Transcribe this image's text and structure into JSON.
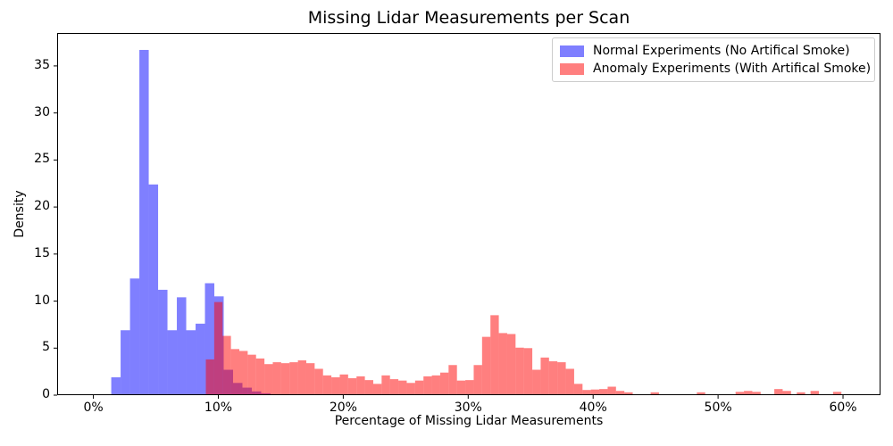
{
  "chart_data": {
    "type": "histogram",
    "title": "Missing Lidar Measurements per Scan",
    "xlabel": "Percentage of Missing Lidar Measurements",
    "ylabel": "Density",
    "xlim": [
      -2.9,
      63.0
    ],
    "ylim": [
      0,
      38.5
    ],
    "grid": false,
    "x_tick_values": [
      0,
      10,
      20,
      30,
      40,
      50,
      60
    ],
    "x_tick_labels": [
      "0%",
      "10%",
      "20%",
      "30%",
      "40%",
      "50%",
      "60%"
    ],
    "y_tick_values": [
      0,
      5,
      10,
      15,
      20,
      25,
      30,
      35
    ],
    "y_tick_labels": [
      "0",
      "5",
      "10",
      "15",
      "20",
      "25",
      "30",
      "35"
    ],
    "legend": {
      "position": "upper right",
      "entries": [
        {
          "label": "Normal Experiments (No Artifical Smoke)",
          "color": "rgba(0,0,255,0.5)"
        },
        {
          "label": "Anomaly Experiments (With Artifical Smoke)",
          "color": "rgba(255,0,0,0.5)"
        }
      ]
    },
    "series": [
      {
        "name": "Normal Experiments (No Artifical Smoke)",
        "color": "rgba(0,0,255,0.5)",
        "bin_width": 0.75,
        "bins": [
          [
            1.43,
            1.9
          ],
          [
            2.18,
            6.9
          ],
          [
            2.93,
            12.4
          ],
          [
            3.68,
            36.7
          ],
          [
            4.43,
            22.4
          ],
          [
            5.18,
            11.2
          ],
          [
            5.93,
            6.9
          ],
          [
            6.68,
            10.4
          ],
          [
            7.43,
            6.9
          ],
          [
            8.18,
            7.6
          ],
          [
            8.93,
            11.9
          ],
          [
            9.68,
            10.5
          ],
          [
            10.43,
            2.7
          ],
          [
            11.18,
            1.3
          ],
          [
            11.93,
            0.8
          ],
          [
            12.68,
            0.4
          ],
          [
            13.43,
            0.2
          ]
        ]
      },
      {
        "name": "Anomaly Experiments (With Artifical Smoke)",
        "color": "rgba(255,0,0,0.5)",
        "bin_width": 0.67,
        "bins": [
          [
            9.0,
            3.8
          ],
          [
            9.67,
            9.9
          ],
          [
            10.34,
            6.3
          ],
          [
            11.01,
            4.9
          ],
          [
            11.68,
            4.7
          ],
          [
            12.35,
            4.3
          ],
          [
            13.02,
            3.9
          ],
          [
            13.69,
            3.3
          ],
          [
            14.36,
            3.5
          ],
          [
            15.03,
            3.4
          ],
          [
            15.7,
            3.5
          ],
          [
            16.37,
            3.7
          ],
          [
            17.04,
            3.4
          ],
          [
            17.71,
            2.8
          ],
          [
            18.38,
            2.1
          ],
          [
            19.05,
            1.9
          ],
          [
            19.72,
            2.2
          ],
          [
            20.39,
            1.8
          ],
          [
            21.06,
            2.0
          ],
          [
            21.73,
            1.6
          ],
          [
            22.4,
            1.2
          ],
          [
            23.07,
            2.1
          ],
          [
            23.74,
            1.7
          ],
          [
            24.41,
            1.55
          ],
          [
            25.08,
            1.3
          ],
          [
            25.75,
            1.55
          ],
          [
            26.42,
            2.0
          ],
          [
            27.09,
            2.1
          ],
          [
            27.76,
            2.4
          ],
          [
            28.43,
            3.2
          ],
          [
            29.1,
            1.55
          ],
          [
            29.77,
            1.6
          ],
          [
            30.44,
            3.2
          ],
          [
            31.11,
            6.2
          ],
          [
            31.78,
            8.5
          ],
          [
            32.45,
            6.6
          ],
          [
            33.12,
            6.5
          ],
          [
            33.79,
            5.05
          ],
          [
            34.46,
            5.0
          ],
          [
            35.13,
            2.7
          ],
          [
            35.8,
            4.0
          ],
          [
            36.47,
            3.6
          ],
          [
            37.14,
            3.5
          ],
          [
            37.81,
            2.8
          ],
          [
            38.48,
            1.2
          ],
          [
            39.15,
            0.55
          ],
          [
            39.82,
            0.6
          ],
          [
            40.49,
            0.65
          ],
          [
            41.16,
            0.9
          ],
          [
            41.83,
            0.45
          ],
          [
            42.5,
            0.3
          ],
          [
            44.6,
            0.3
          ],
          [
            48.3,
            0.3
          ],
          [
            51.4,
            0.35
          ],
          [
            52.07,
            0.45
          ],
          [
            52.74,
            0.35
          ],
          [
            54.5,
            0.65
          ],
          [
            55.17,
            0.45
          ],
          [
            56.3,
            0.3
          ],
          [
            57.4,
            0.45
          ],
          [
            59.2,
            0.35
          ]
        ]
      }
    ]
  }
}
